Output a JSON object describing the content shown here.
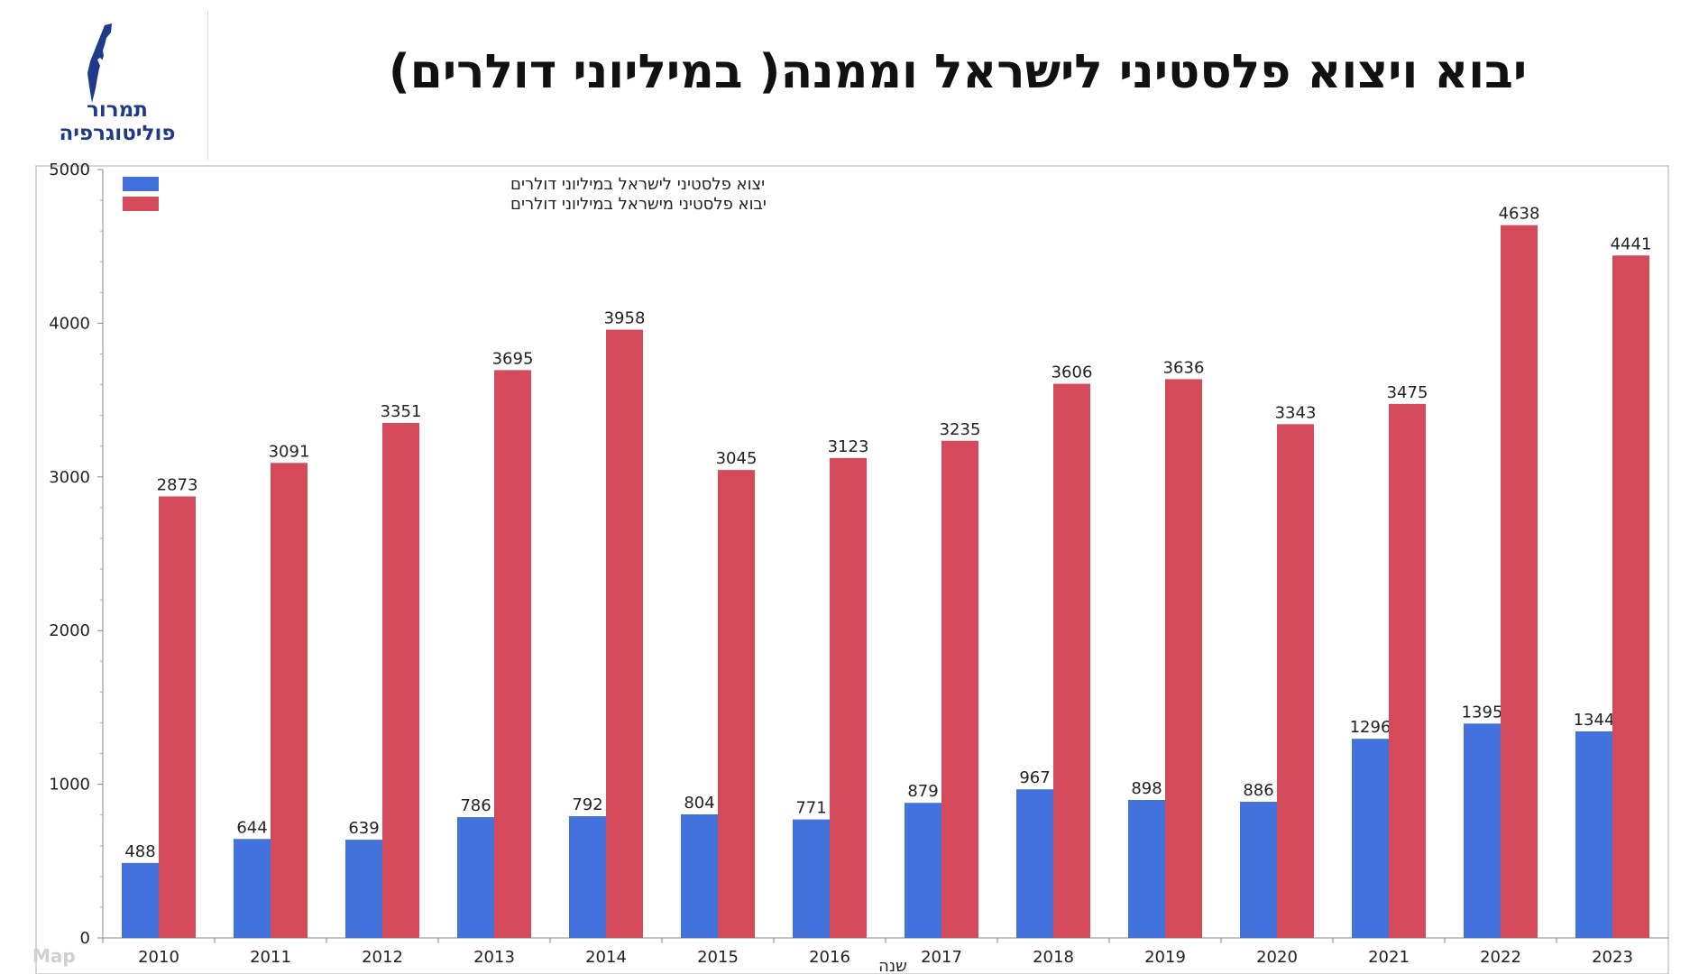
{
  "logo": {
    "line1": "תמרור",
    "line2": "פוליטוגרפיה"
  },
  "title": "יבוא ויצוא פלסטיני לישראל וממנה( במיליוני דולרים)",
  "colors": {
    "export": "#4472dc",
    "import": "#d44a5a",
    "logo": "#1f3a8a"
  },
  "ghost": "Map",
  "chart_data": {
    "type": "bar",
    "title": "",
    "xlabel": "שנה",
    "ylabel": "",
    "ylim": [
      0,
      5000
    ],
    "yticks": [
      0,
      1000,
      2000,
      3000,
      4000,
      5000
    ],
    "grid": false,
    "legend_position": "top-left",
    "categories": [
      "2010",
      "2011",
      "2012",
      "2013",
      "2014",
      "2015",
      "2016",
      "2017",
      "2018",
      "2019",
      "2020",
      "2021",
      "2022",
      "2023"
    ],
    "series": [
      {
        "name": "יצוא פלסטיני לישראל במיליוני דולרים",
        "color": "#4472dc",
        "values": [
          488,
          644,
          639,
          786,
          792,
          804,
          771,
          879,
          967,
          898,
          886,
          1296,
          1395,
          1344
        ]
      },
      {
        "name": "יבוא פלסטיני מישראל במיליוני דולרים",
        "color": "#d44a5a",
        "values": [
          2873,
          3091,
          3351,
          3695,
          3958,
          3045,
          3123,
          3235,
          3606,
          3636,
          3343,
          3475,
          4638,
          4441
        ]
      }
    ]
  }
}
